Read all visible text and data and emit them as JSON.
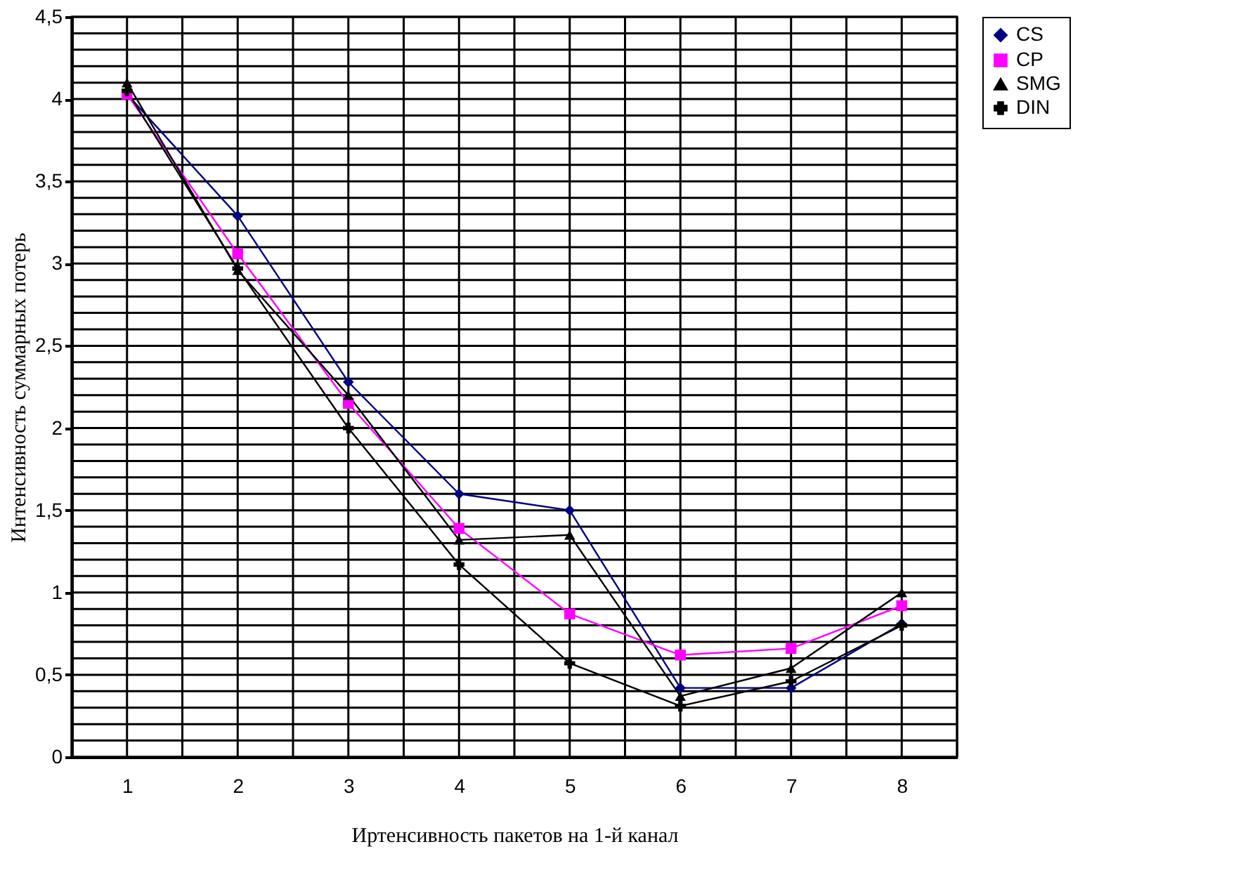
{
  "chart_data": {
    "type": "line",
    "xlabel": "Иртенсивность пакетов на 1-й канал",
    "ylabel": "Интенсивность суммарных потерь",
    "categories": [
      "1",
      "2",
      "3",
      "4",
      "5",
      "6",
      "7",
      "8"
    ],
    "series": [
      {
        "name": "CS",
        "color": "#000080",
        "marker": "diamond",
        "values": [
          4.03,
          3.29,
          2.28,
          1.6,
          1.5,
          0.42,
          0.42,
          0.81
        ]
      },
      {
        "name": "CP",
        "color": "#ff00ff",
        "marker": "square",
        "values": [
          4.03,
          3.06,
          2.15,
          1.39,
          0.87,
          0.62,
          0.66,
          0.92
        ]
      },
      {
        "name": "SMG",
        "color": "#000000",
        "marker": "triangle",
        "values": [
          4.1,
          2.96,
          2.2,
          1.32,
          1.35,
          0.37,
          0.54,
          1.0
        ]
      },
      {
        "name": "DIN",
        "color": "#000000",
        "marker": "cross",
        "values": [
          4.05,
          2.97,
          2.0,
          1.17,
          0.57,
          0.31,
          0.46,
          0.8
        ]
      }
    ],
    "ylim": [
      0,
      4.5
    ],
    "yticks": [
      0,
      {
        "value": 0.5,
        "label": "0,5"
      },
      1,
      {
        "value": 1.5,
        "label": "1,5"
      },
      2,
      {
        "value": 2.5,
        "label": "2,5"
      },
      3,
      {
        "value": 3.5,
        "label": "3,5"
      },
      4,
      {
        "value": 4.5,
        "label": "4,5"
      }
    ],
    "grid": true,
    "legend": "right",
    "line_style": "solid"
  }
}
